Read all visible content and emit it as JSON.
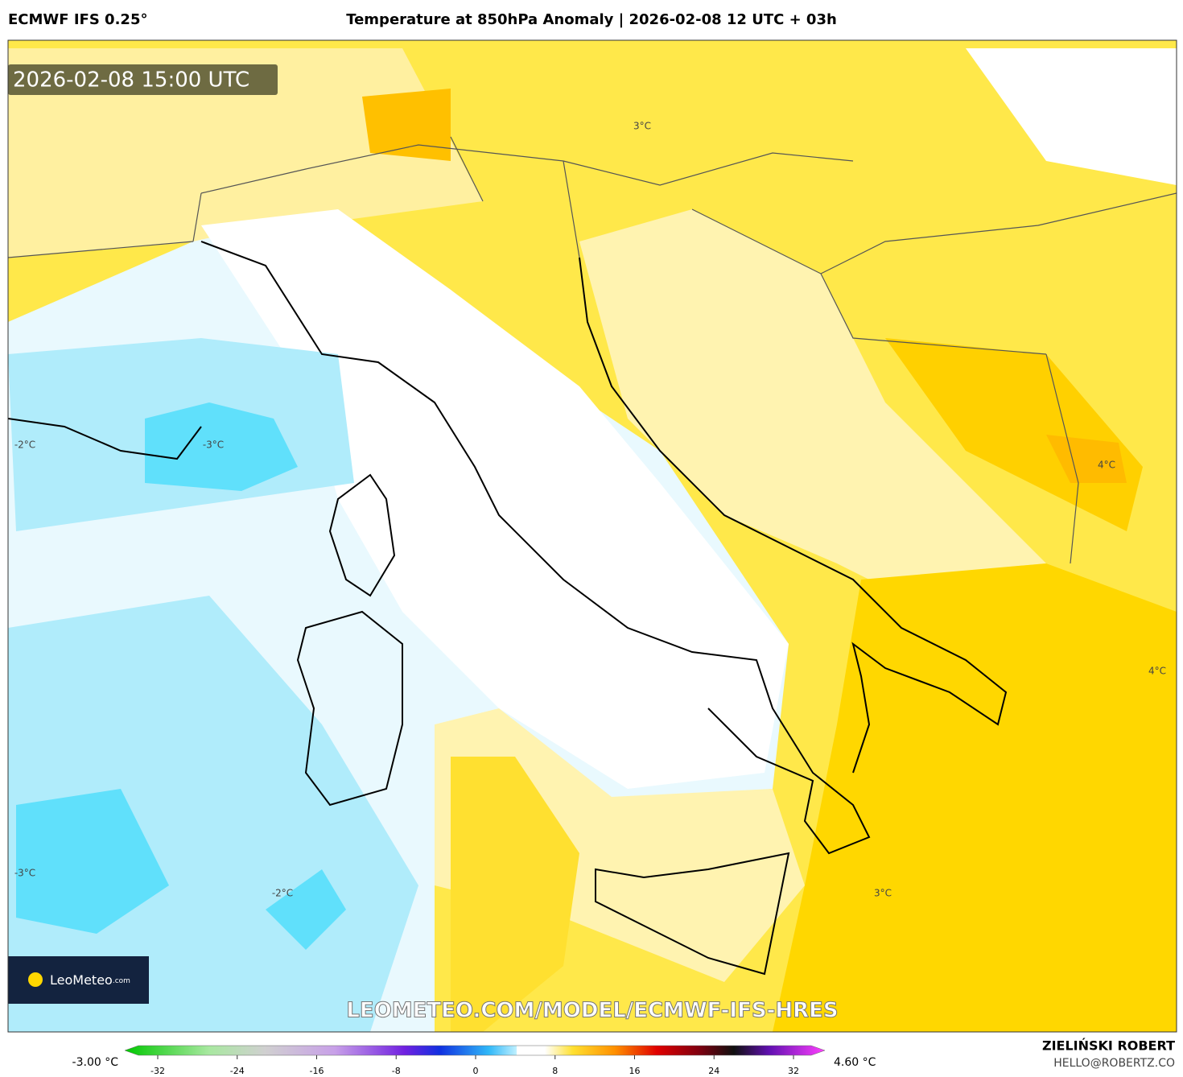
{
  "header": {
    "model": "ECMWF IFS 0.25°",
    "title": "Temperature at 850hPa Anomaly | 2026-02-08 12 UTC + 03h"
  },
  "map": {
    "timestamp": "2026-02-08 15:00 UTC",
    "contour_labels": [
      "3°C",
      "-2°C",
      "-3°C",
      "4°C",
      "4°C",
      "-3°C",
      "-2°C",
      "3°C"
    ],
    "watermark": "LEOMETEO.COM/MODEL/ECMWF-IFS-HRES",
    "logo": {
      "name": "LeoMeteo",
      "suffix": ".com"
    }
  },
  "colorbar": {
    "min_label": "-3.00 °C",
    "max_label": "4.60 °C",
    "ticks": [
      -32,
      -24,
      -16,
      -8,
      0,
      8,
      16,
      24,
      32
    ]
  },
  "footer": {
    "author": "ZIELIŃSKI ROBERT",
    "email": "HELLO@ROBERTZ.CO"
  }
}
